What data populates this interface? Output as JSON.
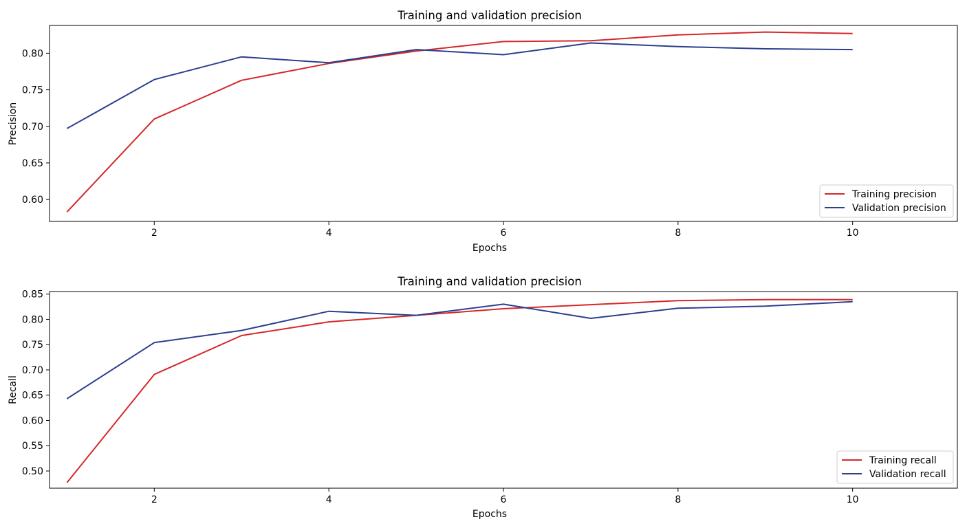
{
  "chart_data": [
    {
      "type": "line",
      "title": "Training and validation precision",
      "xlabel": "Epochs",
      "ylabel": "Precision",
      "x": [
        1,
        2,
        3,
        4,
        5,
        6,
        7,
        8,
        9,
        10
      ],
      "xlim": [
        0.8,
        11.2
      ],
      "ylim": [
        0.57,
        0.838
      ],
      "xticks": [
        2,
        4,
        6,
        8,
        10
      ],
      "xtick_labels": [
        "2",
        "4",
        "6",
        "8",
        "10"
      ],
      "yticks": [
        0.6,
        0.65,
        0.7,
        0.75,
        0.8
      ],
      "ytick_labels": [
        "0.60",
        "0.65",
        "0.70",
        "0.75",
        "0.80"
      ],
      "grid": false,
      "legend_position": "lower-right",
      "series": [
        {
          "name": "Training precision",
          "color": "#d62728",
          "values": [
            0.583,
            0.71,
            0.763,
            0.786,
            0.803,
            0.816,
            0.817,
            0.825,
            0.829,
            0.827
          ]
        },
        {
          "name": "Validation precision",
          "color": "#2b3f8f",
          "values": [
            0.697,
            0.764,
            0.795,
            0.787,
            0.805,
            0.798,
            0.814,
            0.809,
            0.806,
            0.805
          ]
        }
      ]
    },
    {
      "type": "line",
      "title": "Training and validation precision",
      "xlabel": "Epochs",
      "ylabel": "Recall",
      "x": [
        1,
        2,
        3,
        4,
        5,
        6,
        7,
        8,
        9,
        10
      ],
      "xlim": [
        0.8,
        11.2
      ],
      "ylim": [
        0.466,
        0.855
      ],
      "xticks": [
        2,
        4,
        6,
        8,
        10
      ],
      "xtick_labels": [
        "2",
        "4",
        "6",
        "8",
        "10"
      ],
      "yticks": [
        0.5,
        0.55,
        0.6,
        0.65,
        0.7,
        0.75,
        0.8,
        0.85
      ],
      "ytick_labels": [
        "0.50",
        "0.55",
        "0.60",
        "0.65",
        "0.70",
        "0.75",
        "0.80",
        "0.85"
      ],
      "grid": false,
      "legend_position": "lower-right",
      "series": [
        {
          "name": "Training recall",
          "color": "#d62728",
          "values": [
            0.477,
            0.691,
            0.768,
            0.795,
            0.808,
            0.821,
            0.829,
            0.837,
            0.839,
            0.839
          ]
        },
        {
          "name": "Validation recall",
          "color": "#2b3f8f",
          "values": [
            0.643,
            0.754,
            0.778,
            0.816,
            0.808,
            0.83,
            0.802,
            0.822,
            0.826,
            0.835
          ]
        }
      ]
    }
  ]
}
